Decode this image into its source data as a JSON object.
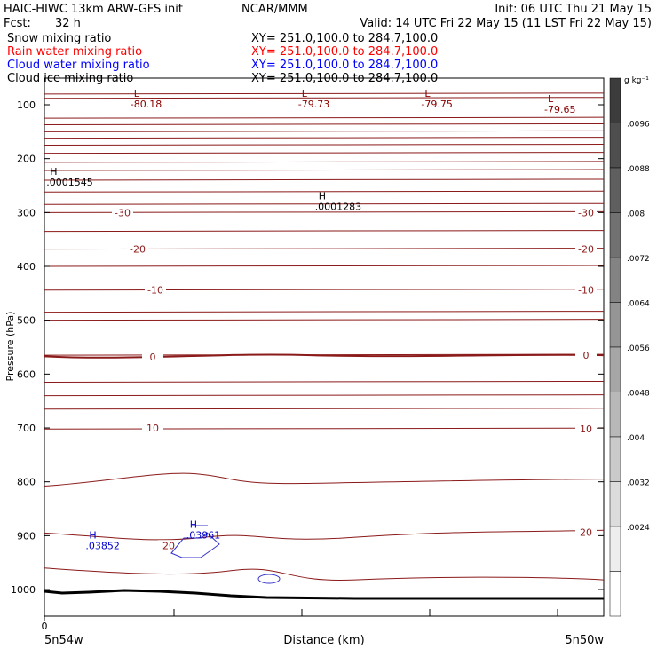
{
  "header": {
    "title": "HAIC-HIWC 13km ARW-GFS init",
    "center": "NCAR/MMM",
    "init": "Init: 06 UTC Thu 21 May 15",
    "fcst_label": "Fcst:",
    "fcst_value": "32 h",
    "valid": "Valid: 14 UTC Fri 22 May 15 (11 LST Fri 22 May 15)"
  },
  "fields": [
    {
      "name": "Snow mixing ratio",
      "xy": "XY= 251.0,100.0 to 284.7,100.0",
      "color": "#000000"
    },
    {
      "name": "Rain water mixing ratio",
      "xy": "XY= 251.0,100.0 to 284.7,100.0",
      "color": "#ff0000"
    },
    {
      "name": "Cloud water mixing ratio",
      "xy": "XY= 251.0,100.0 to 284.7,100.0",
      "color": "#0000ff"
    },
    {
      "name": "Cloud ice mixing ratio",
      "xy": "XY= 251.0,100.0 to 284.7,100.0",
      "color": "#000000"
    }
  ],
  "chart_data": {
    "type": "cross-section contour",
    "ylabel": "Pressure (hPa)",
    "xlabel": "Distance (km)",
    "x_tick_label": "0",
    "x_left_label": "5n54w",
    "x_right_label": "5n50w",
    "y_ticks": [
      100,
      200,
      300,
      400,
      500,
      600,
      700,
      800,
      900,
      1000
    ],
    "ylim": [
      1050,
      70
    ],
    "colorbar": {
      "unit": "g kg⁻¹",
      "labels": [
        ".0096",
        ".0088",
        ".008",
        ".0072",
        ".0064",
        ".0056",
        ".0048",
        ".004",
        ".0032",
        ".0024"
      ]
    },
    "temperature_labels": [
      {
        "text": "-30",
        "side": "left",
        "p": 300
      },
      {
        "text": "-30",
        "side": "right",
        "p": 300
      },
      {
        "text": "-20",
        "side": "left",
        "p": 368
      },
      {
        "text": "-20",
        "side": "right",
        "p": 368
      },
      {
        "text": "-10",
        "side": "left",
        "p": 444
      },
      {
        "text": "-10",
        "side": "right",
        "p": 444
      },
      {
        "text": "0",
        "side": "left",
        "p": 568
      },
      {
        "text": "0",
        "side": "right",
        "p": 565
      },
      {
        "text": "10",
        "side": "left",
        "p": 700
      },
      {
        "text": "10",
        "side": "right",
        "p": 702
      },
      {
        "text": "20",
        "side": "left",
        "p": 918
      },
      {
        "text": "20",
        "side": "right",
        "p": 894
      }
    ],
    "extrema": [
      {
        "mark": "L",
        "value": "-80.18",
        "color": "#8b0000",
        "x": 0.16,
        "p": 100
      },
      {
        "mark": "L",
        "value": "-79.73",
        "color": "#8b0000",
        "x": 0.46,
        "p": 100
      },
      {
        "mark": "L",
        "value": "-79.75",
        "color": "#8b0000",
        "x": 0.68,
        "p": 100
      },
      {
        "mark": "L",
        "value": "-79.65",
        "color": "#8b0000",
        "x": 0.9,
        "p": 110
      },
      {
        "mark": "H",
        "value": ".0001545",
        "color": "#000000",
        "x": 0.01,
        "p": 245
      },
      {
        "mark": "H",
        "value": ".0001283",
        "color": "#000000",
        "x": 0.49,
        "p": 290
      },
      {
        "mark": "H",
        "value": ".03852",
        "color": "#0000cc",
        "x": 0.08,
        "p": 920
      },
      {
        "mark": "H",
        "value": ".03961",
        "color": "#0000cc",
        "x": 0.26,
        "p": 900
      }
    ],
    "theta_lines_p": [
      80,
      88,
      125,
      137,
      150,
      162,
      175,
      190,
      207,
      222,
      240,
      262,
      285,
      300,
      335,
      368,
      400,
      444,
      485,
      500,
      565,
      615,
      640,
      665,
      702
    ]
  }
}
